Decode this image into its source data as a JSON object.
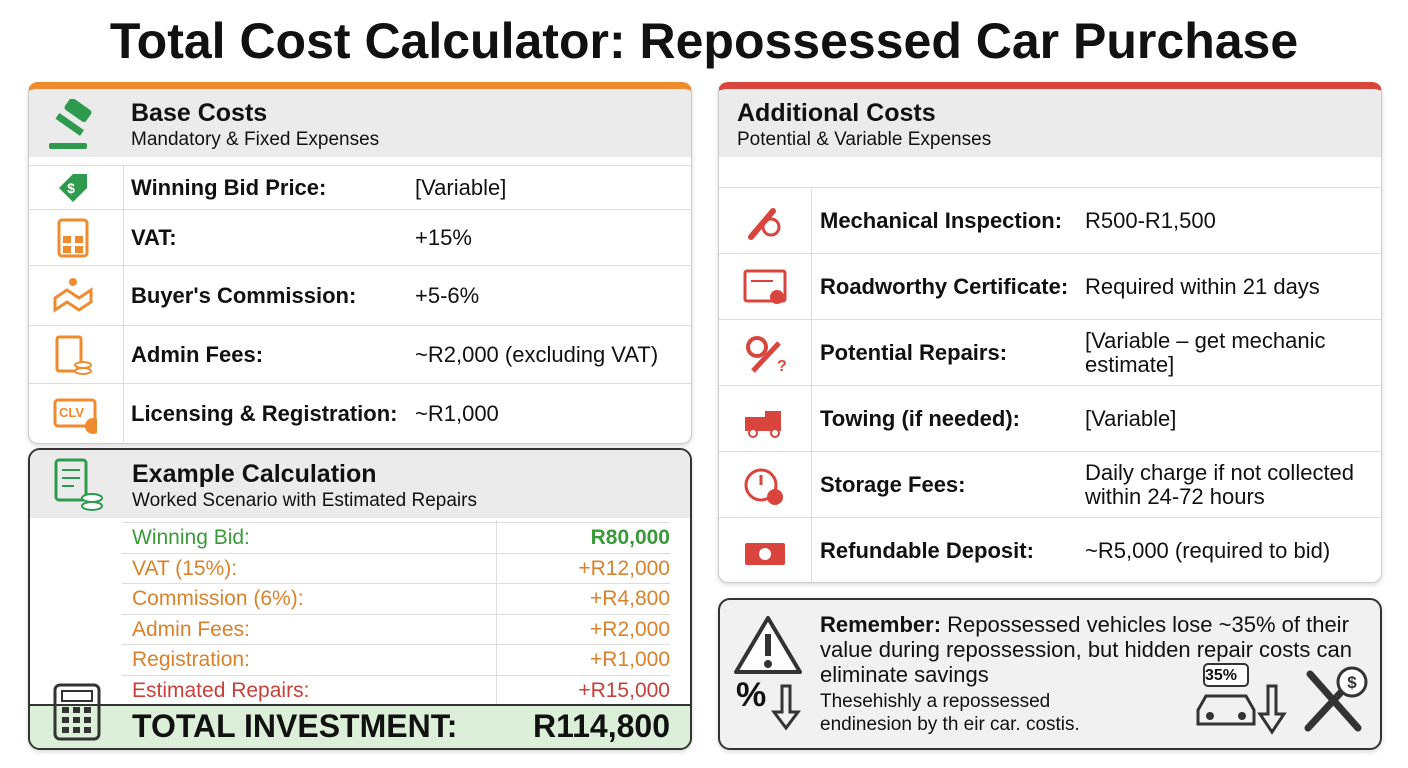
{
  "title": "Total Cost Calculator: Repossessed Car Purchase",
  "base_costs": {
    "heading": "Base Costs",
    "subheading": "Mandatory & Fixed Expenses",
    "icon_text": "CLV",
    "rows": [
      [
        "Winning Bid Price:",
        "[Variable]"
      ],
      [
        "VAT:",
        "+15%"
      ],
      [
        "Buyer's Commission:",
        "+5-6%"
      ],
      [
        "Admin Fees:",
        "~R2,000 (excluding VAT)"
      ],
      [
        "Licensing & Registration:",
        "~R1,000"
      ]
    ]
  },
  "additional_costs": {
    "heading": "Additional Costs",
    "subheading": "Potential & Variable Expenses",
    "rows": [
      [
        "Mechanical Inspection:",
        "R500-R1,500"
      ],
      [
        "Roadworthy Certificate:",
        "Required within 21 days"
      ],
      [
        "Potential Repairs:",
        "[Variable – get mechanic estimate]"
      ],
      [
        "Towing (if needed):",
        "[Variable]"
      ],
      [
        "Storage Fees:",
        "Daily charge if not collected within 24-72 hours"
      ],
      [
        "Refundable Deposit:",
        "~R5,000 (required to bid)"
      ]
    ]
  },
  "example": {
    "heading": "Example Calculation",
    "subheading": "Worked Scenario with Estimated Repairs",
    "rows": [
      [
        "Winning Bid:",
        "R80,000"
      ],
      [
        "VAT (15%):",
        "+R12,000"
      ],
      [
        "Commission (6%):",
        "+R4,800"
      ],
      [
        "Admin Fees:",
        "+R2,000"
      ],
      [
        "Registration:",
        "+R1,000"
      ],
      [
        "Estimated Repairs:",
        "+R15,000"
      ]
    ],
    "total": [
      "TOTAL INVESTMENT:",
      "R114,800"
    ]
  },
  "remember": {
    "label": "Remember:",
    "text": "Repossessed vehicles lose ~35% of their value during repossession, but hidden repair costs can eliminate savings",
    "note": "Thesehishly a repossessed endinesion by th eir car. costis.",
    "percent_symbol": "%",
    "badge": "35%"
  }
}
